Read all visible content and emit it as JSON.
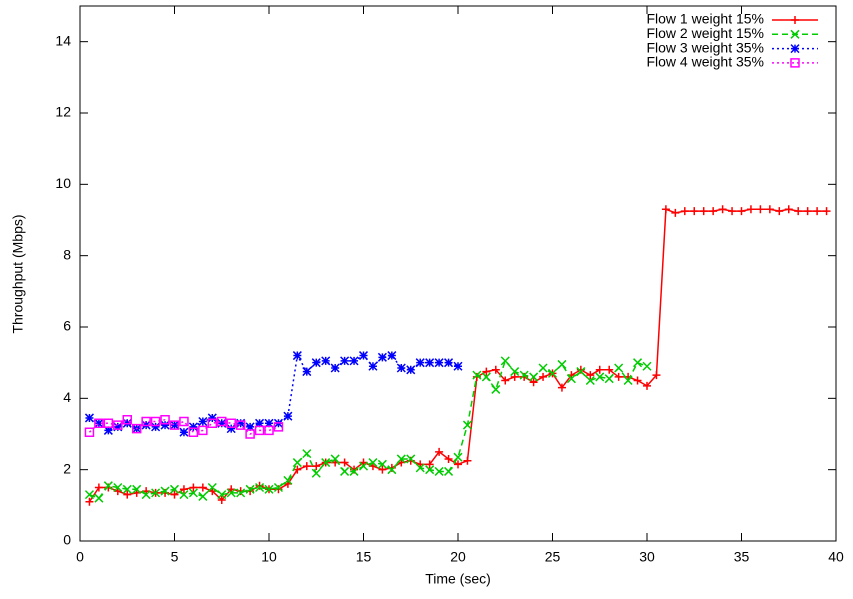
{
  "chart_data": {
    "type": "line",
    "xlabel": "Time (sec)",
    "ylabel": "Throughput (Mbps)",
    "xlim": [
      0,
      40
    ],
    "xticks": [
      0,
      5,
      10,
      15,
      20,
      25,
      30,
      35,
      40
    ],
    "ylim": [
      0,
      15
    ],
    "yticks": [
      0,
      2,
      4,
      6,
      8,
      10,
      12,
      14
    ],
    "legend": "upper right",
    "grid": false,
    "series": [
      {
        "name": "Flow 1 weight 15%",
        "color": "#ff0000",
        "dash": "solid",
        "marker": "plus",
        "x": [
          0.5,
          1,
          1.5,
          2,
          2.5,
          3,
          3.5,
          4,
          4.5,
          5,
          5.5,
          6,
          6.5,
          7,
          7.5,
          8,
          8.5,
          9,
          9.5,
          10,
          10.5,
          11,
          11.5,
          12,
          12.5,
          13,
          13.5,
          14,
          14.5,
          15,
          15.5,
          16,
          16.5,
          17,
          17.5,
          18,
          18.5,
          19,
          19.5,
          20,
          20.5,
          21,
          21.5,
          22,
          22.5,
          23,
          23.5,
          24,
          24.5,
          25,
          25.5,
          26,
          26.5,
          27,
          27.5,
          28,
          28.5,
          29,
          29.5,
          30,
          30.5,
          31,
          31.5,
          32,
          32.5,
          33,
          33.5,
          34,
          34.5,
          35,
          35.5,
          36,
          36.5,
          37,
          37.5,
          38,
          38.5,
          39,
          39.5
        ],
        "values": [
          1.1,
          1.5,
          1.5,
          1.4,
          1.3,
          1.35,
          1.4,
          1.35,
          1.35,
          1.3,
          1.45,
          1.5,
          1.5,
          1.4,
          1.15,
          1.45,
          1.4,
          1.4,
          1.55,
          1.45,
          1.45,
          1.6,
          2.0,
          2.1,
          2.1,
          2.2,
          2.2,
          2.2,
          2.0,
          2.2,
          2.1,
          2.0,
          2.05,
          2.2,
          2.25,
          2.15,
          2.15,
          2.5,
          2.3,
          2.15,
          2.25,
          4.6,
          4.75,
          4.8,
          4.5,
          4.6,
          4.6,
          4.45,
          4.6,
          4.7,
          4.3,
          4.65,
          4.8,
          4.65,
          4.8,
          4.8,
          4.6,
          4.6,
          4.5,
          4.35,
          4.65,
          9.3,
          9.2,
          9.25,
          9.25,
          9.25,
          9.25,
          9.3,
          9.25,
          9.25,
          9.3,
          9.3,
          9.3,
          9.25,
          9.3,
          9.25,
          9.25,
          9.25,
          9.25
        ]
      },
      {
        "name": "Flow 2 weight 15%",
        "color": "#00cc00",
        "dash": "dashed",
        "marker": "cross",
        "x": [
          0.5,
          1,
          1.5,
          2,
          2.5,
          3,
          3.5,
          4,
          4.5,
          5,
          5.5,
          6,
          6.5,
          7,
          7.5,
          8,
          8.5,
          9,
          9.5,
          10,
          10.5,
          11,
          11.5,
          12,
          12.5,
          13,
          13.5,
          14,
          14.5,
          15,
          15.5,
          16,
          16.5,
          17,
          17.5,
          18,
          18.5,
          19,
          19.5,
          20,
          20.5,
          21,
          21.5,
          22,
          22.5,
          23,
          23.5,
          24,
          24.5,
          25,
          25.5,
          26,
          26.5,
          27,
          27.5,
          28,
          28.5,
          29,
          29.5,
          30
        ],
        "values": [
          1.3,
          1.2,
          1.55,
          1.5,
          1.45,
          1.45,
          1.3,
          1.35,
          1.4,
          1.45,
          1.3,
          1.35,
          1.25,
          1.5,
          1.3,
          1.35,
          1.35,
          1.45,
          1.5,
          1.45,
          1.5,
          1.7,
          2.2,
          2.45,
          1.9,
          2.2,
          2.3,
          1.95,
          1.95,
          2.1,
          2.2,
          2.15,
          2.0,
          2.3,
          2.3,
          2.05,
          2.0,
          1.95,
          1.95,
          2.35,
          3.25,
          4.65,
          4.6,
          4.25,
          5.05,
          4.75,
          4.65,
          4.6,
          4.85,
          4.7,
          4.95,
          4.55,
          4.75,
          4.5,
          4.6,
          4.55,
          4.85,
          4.5,
          5.0,
          4.9
        ]
      },
      {
        "name": "Flow 3 weight 35%",
        "color": "#0000ff",
        "dash": "dotted",
        "marker": "star",
        "x": [
          0.5,
          1,
          1.5,
          2,
          2.5,
          3,
          3.5,
          4,
          4.5,
          5,
          5.5,
          6,
          6.5,
          7,
          7.5,
          8,
          8.5,
          9,
          9.5,
          10,
          10.5,
          11,
          11.5,
          12,
          12.5,
          13,
          13.5,
          14,
          14.5,
          15,
          15.5,
          16,
          16.5,
          17,
          17.5,
          18,
          18.5,
          19,
          19.5,
          20
        ],
        "values": [
          3.45,
          3.3,
          3.1,
          3.2,
          3.3,
          3.15,
          3.25,
          3.2,
          3.25,
          3.25,
          3.05,
          3.2,
          3.35,
          3.45,
          3.3,
          3.15,
          3.3,
          3.2,
          3.3,
          3.3,
          3.3,
          3.5,
          5.2,
          4.75,
          5.0,
          5.05,
          4.85,
          5.05,
          5.05,
          5.2,
          4.9,
          5.15,
          5.2,
          4.85,
          4.8,
          5.0,
          5.0,
          5.0,
          5.0,
          4.9
        ]
      },
      {
        "name": "Flow 4 weight 35%",
        "color": "#ff00ff",
        "dash": "dotted",
        "marker": "square",
        "x": [
          0.5,
          1,
          1.5,
          2,
          2.5,
          3,
          3.5,
          4,
          4.5,
          5,
          5.5,
          6,
          6.5,
          7,
          7.5,
          8,
          8.5,
          9,
          9.5,
          10,
          10.5
        ],
        "values": [
          3.05,
          3.3,
          3.3,
          3.25,
          3.4,
          3.15,
          3.35,
          3.35,
          3.4,
          3.25,
          3.35,
          3.05,
          3.1,
          3.3,
          3.35,
          3.3,
          3.25,
          3.0,
          3.1,
          3.1,
          3.2
        ]
      }
    ]
  }
}
